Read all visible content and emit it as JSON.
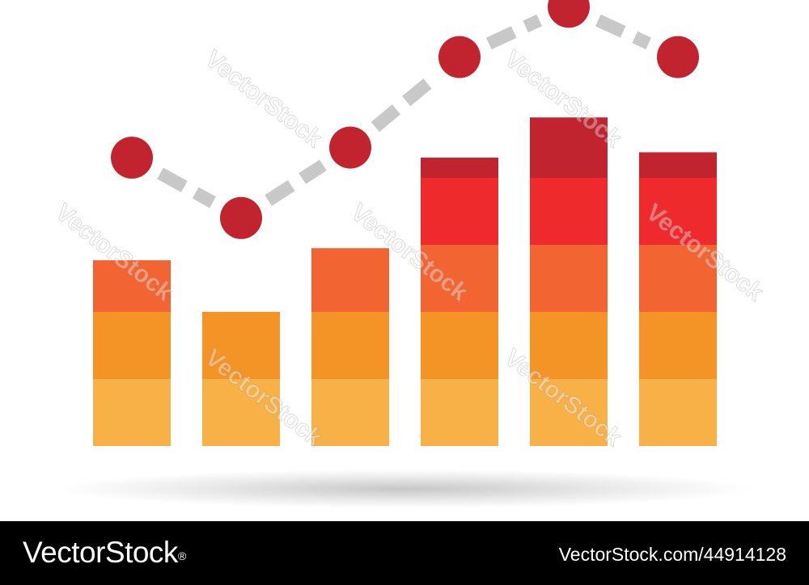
{
  "chart_data": {
    "type": "bar",
    "stacked": true,
    "overlay_line": true,
    "categories": [
      "",
      "",
      "",
      "",
      "",
      ""
    ],
    "series": [
      {
        "values": [
          1,
          1,
          1,
          1,
          1,
          1
        ],
        "color": "#F8B146"
      },
      {
        "values": [
          1,
          1,
          1,
          1,
          1,
          1
        ],
        "color": "#F59426"
      },
      {
        "values": [
          0.77,
          0,
          0.95,
          1,
          1,
          1
        ],
        "color": "#F26532"
      },
      {
        "values": [
          0,
          0,
          0,
          1,
          1,
          1
        ],
        "color": "#EE2A2C"
      },
      {
        "values": [
          0,
          0,
          0,
          0.3,
          0.9,
          0.38
        ],
        "color": "#C1232F"
      }
    ],
    "line": {
      "values": [
        4.3,
        3.4,
        4.45,
        5.8,
        6.55,
        5.8
      ],
      "marker_color": "#C1232F",
      "line_color": "#C8C8C8",
      "dashed": true
    },
    "ylim": [
      0,
      6.65
    ],
    "grid": false,
    "legend": "none"
  },
  "watermark": {
    "text": "VectorStock"
  },
  "footer": {
    "brand": "VectorStock",
    "registered": "®",
    "image_id": "VectorStock.com/44914128"
  }
}
